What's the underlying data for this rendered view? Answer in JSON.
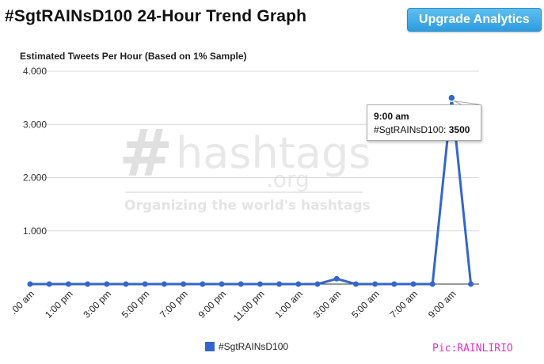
{
  "header": {
    "title": "#SgtRAINsD100 24-Hour Trend Graph",
    "upgrade_label": "Upgrade Analytics"
  },
  "watermark": {
    "hash": "#",
    "name": "hashtags",
    "tld": ".org",
    "tagline": "Organizing the world's hashtags"
  },
  "tooltip": {
    "time": "9:00 am",
    "series": "#SgtRAINsD100",
    "value": "3500"
  },
  "credit": "Pic:RAINLIRIO",
  "colors": {
    "series": "#3366cc",
    "button": "#2e9be0"
  },
  "chart_data": {
    "type": "line",
    "title": "Estimated Tweets Per Hour (Based on 1% Sample)",
    "xlabel": "",
    "ylabel": "",
    "ylim": [
      0,
      4000
    ],
    "yticks": [
      1000,
      2000,
      3000,
      4000
    ],
    "ytick_labels": [
      "1.000",
      "2.000",
      "3.000",
      "4.000"
    ],
    "x_tick_labels": [
      ".00 am",
      "1:00 pm",
      "3:00 pm",
      "5:00 pm",
      "7:00 pm",
      "9:00 pm",
      "11:00 pm",
      "1:00 am",
      "3:00 am",
      "5:00 am",
      "7:00 am",
      "9:00 am"
    ],
    "grid": true,
    "legend_position": "bottom",
    "series": [
      {
        "name": "#SgtRAINsD100",
        "values": [
          0,
          0,
          0,
          0,
          0,
          0,
          0,
          0,
          0,
          0,
          0,
          0,
          0,
          0,
          0,
          0,
          100,
          0,
          0,
          0,
          0,
          0,
          3500,
          0
        ]
      }
    ]
  }
}
